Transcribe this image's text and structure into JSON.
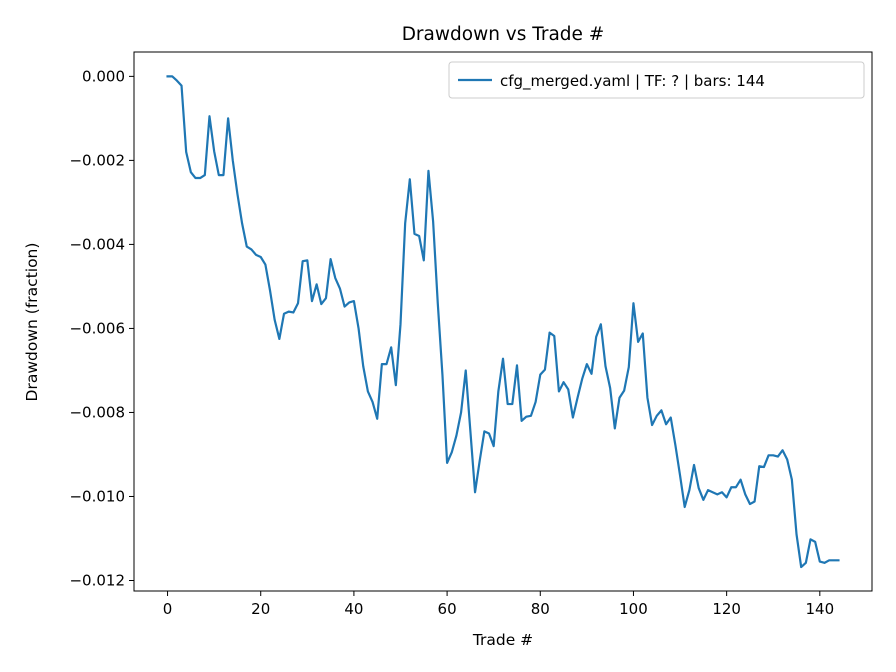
{
  "chart_data": {
    "type": "line",
    "title": "Drawdown vs Trade #",
    "xlabel": "Trade #",
    "ylabel": "Drawdown (fraction)",
    "xlim": [
      -7.2,
      151.2
    ],
    "ylim": [
      -0.01225,
      0.00058
    ],
    "xticks": [
      0,
      20,
      40,
      60,
      80,
      100,
      120,
      140
    ],
    "xtick_labels": [
      "0",
      "20",
      "40",
      "60",
      "80",
      "100",
      "120",
      "140"
    ],
    "yticks": [
      0.0,
      -0.002,
      -0.004,
      -0.006,
      -0.008,
      -0.01,
      -0.012
    ],
    "ytick_labels": [
      "0.000",
      "−0.002",
      "−0.004",
      "−0.006",
      "−0.008",
      "−0.010",
      "−0.012"
    ],
    "grid": false,
    "legend_position": "top-right",
    "series": [
      {
        "name": "cfg_merged.yaml | TF: ? | bars: 144",
        "color": "#1f77b4",
        "x": [
          0,
          1,
          2,
          3,
          4,
          5,
          6,
          7,
          8,
          9,
          10,
          11,
          12,
          13,
          14,
          15,
          16,
          17,
          18,
          19,
          20,
          21,
          22,
          23,
          24,
          25,
          26,
          27,
          28,
          29,
          30,
          31,
          32,
          33,
          34,
          35,
          36,
          37,
          38,
          39,
          40,
          41,
          42,
          43,
          44,
          45,
          46,
          47,
          48,
          49,
          50,
          51,
          52,
          53,
          54,
          55,
          56,
          57,
          58,
          59,
          60,
          61,
          62,
          63,
          64,
          65,
          66,
          67,
          68,
          69,
          70,
          71,
          72,
          73,
          74,
          75,
          76,
          77,
          78,
          79,
          80,
          81,
          82,
          83,
          84,
          85,
          86,
          87,
          88,
          89,
          90,
          91,
          92,
          93,
          94,
          95,
          96,
          97,
          98,
          99,
          100,
          101,
          102,
          103,
          104,
          105,
          106,
          107,
          108,
          109,
          110,
          111,
          112,
          113,
          114,
          115,
          116,
          117,
          118,
          119,
          120,
          121,
          122,
          123,
          124,
          125,
          126,
          127,
          128,
          129,
          130,
          131,
          132,
          133,
          134,
          135,
          136,
          137,
          138,
          139,
          140,
          141,
          142,
          143,
          144
        ],
        "y": [
          0.0,
          0.0,
          -0.0001,
          -0.00022,
          -0.0018,
          -0.00228,
          -0.00242,
          -0.00242,
          -0.00235,
          -0.00095,
          -0.00178,
          -0.00235,
          -0.00235,
          -0.001,
          -0.002,
          -0.0028,
          -0.0035,
          -0.00405,
          -0.00412,
          -0.00425,
          -0.0043,
          -0.00448,
          -0.0051,
          -0.0058,
          -0.00625,
          -0.00565,
          -0.0056,
          -0.00562,
          -0.0054,
          -0.0044,
          -0.00438,
          -0.00535,
          -0.00495,
          -0.00542,
          -0.00528,
          -0.00435,
          -0.0048,
          -0.00505,
          -0.00548,
          -0.00538,
          -0.00535,
          -0.006,
          -0.0069,
          -0.0075,
          -0.00775,
          -0.00815,
          -0.00685,
          -0.00685,
          -0.00645,
          -0.00735,
          -0.0059,
          -0.0035,
          -0.00245,
          -0.00375,
          -0.0038,
          -0.00438,
          -0.00225,
          -0.00345,
          -0.0054,
          -0.0071,
          -0.0092,
          -0.00895,
          -0.00855,
          -0.008,
          -0.007,
          -0.00845,
          -0.0099,
          -0.00915,
          -0.00845,
          -0.0085,
          -0.0088,
          -0.0075,
          -0.00672,
          -0.0078,
          -0.0078,
          -0.00688,
          -0.0082,
          -0.0081,
          -0.00808,
          -0.00775,
          -0.0071,
          -0.00698,
          -0.0061,
          -0.00618,
          -0.0075,
          -0.00728,
          -0.00745,
          -0.00812,
          -0.00765,
          -0.0072,
          -0.00685,
          -0.00708,
          -0.0062,
          -0.0059,
          -0.0069,
          -0.00742,
          -0.00838,
          -0.00765,
          -0.00748,
          -0.00692,
          -0.0054,
          -0.00632,
          -0.00612,
          -0.00765,
          -0.0083,
          -0.00808,
          -0.00795,
          -0.00828,
          -0.00812,
          -0.00878,
          -0.0095,
          -0.01025,
          -0.00985,
          -0.00925,
          -0.0098,
          -0.01008,
          -0.00985,
          -0.0099,
          -0.00995,
          -0.0099,
          -0.01002,
          -0.00978,
          -0.00978,
          -0.0096,
          -0.00995,
          -0.01018,
          -0.01012,
          -0.00928,
          -0.0093,
          -0.00902,
          -0.00902,
          -0.00905,
          -0.0089,
          -0.00912,
          -0.0096,
          -0.0109,
          -0.01168,
          -0.01158,
          -0.01102,
          -0.01108,
          -0.01155,
          -0.01158,
          -0.01152,
          -0.01152,
          -0.01152
        ]
      }
    ]
  }
}
